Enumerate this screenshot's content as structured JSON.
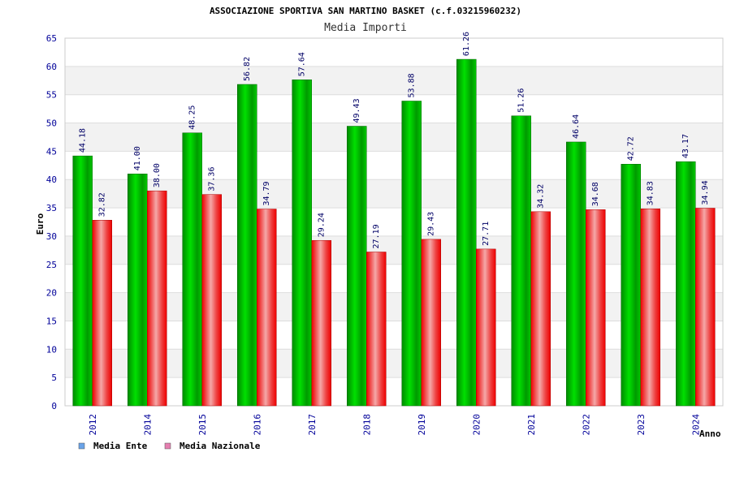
{
  "chart_data": {
    "type": "bar",
    "title": "ASSOCIAZIONE SPORTIVA SAN MARTINO BASKET (c.f.03215960232)",
    "subtitle": "Media Importi",
    "xlabel": "Anno",
    "ylabel": "Euro",
    "ylim": [
      0,
      65
    ],
    "yticks": [
      0,
      5,
      10,
      15,
      20,
      25,
      30,
      35,
      40,
      45,
      50,
      55,
      60,
      65
    ],
    "grid": "horizontal bands",
    "legend_position": "bottom-left",
    "categories": [
      "2012",
      "2014",
      "2015",
      "2016",
      "2017",
      "2018",
      "2019",
      "2020",
      "2021",
      "2022",
      "2023",
      "2024"
    ],
    "series": [
      {
        "name": "Media Ente",
        "color": "#00cc00",
        "legend_color": "#6aa3e8",
        "values": [
          44.18,
          41.0,
          48.25,
          56.82,
          57.64,
          49.43,
          53.88,
          61.26,
          51.26,
          46.64,
          42.72,
          43.17
        ],
        "labels": [
          "44.18",
          "41.00",
          "48.25",
          "56.82",
          "57.64",
          "49.43",
          "53.88",
          "61.26",
          "51.26",
          "46.64",
          "42.72",
          "43.17"
        ]
      },
      {
        "name": "Media Nazionale",
        "color": "#ee0000",
        "legend_color": "#e57fb0",
        "values": [
          32.82,
          38.0,
          37.36,
          34.79,
          29.24,
          27.19,
          29.43,
          27.71,
          34.32,
          34.68,
          34.83,
          34.94
        ],
        "labels": [
          "32.82",
          "38.00",
          "37.36",
          "34.79",
          "29.24",
          "27.19",
          "29.43",
          "27.71",
          "34.32",
          "34.68",
          "34.83",
          "34.94"
        ]
      }
    ]
  }
}
